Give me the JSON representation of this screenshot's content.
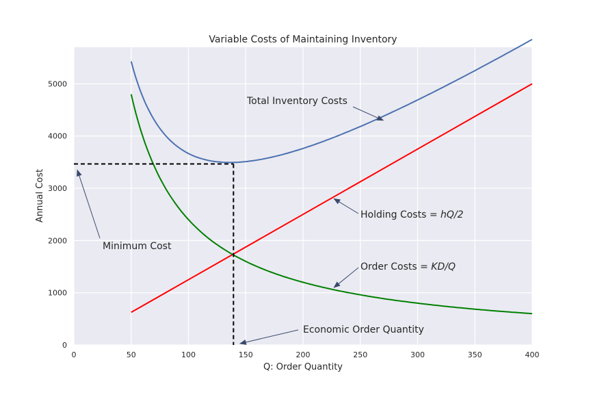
{
  "chart_data": {
    "type": "line",
    "title": "Variable Costs of Maintaining Inventory",
    "xlabel": "Q: Order Quantity",
    "ylabel": "Annual Cost",
    "xlim": [
      0,
      400
    ],
    "ylim": [
      0,
      5700
    ],
    "xticks": [
      0,
      50,
      100,
      150,
      200,
      250,
      300,
      350,
      400
    ],
    "yticks": [
      0,
      1000,
      2000,
      3000,
      4000,
      5000
    ],
    "grid": true,
    "series": [
      {
        "label": "Total Inventory Costs",
        "color": "#4c72b0",
        "x": [
          50,
          60,
          70,
          80,
          90,
          100,
          110,
          120,
          130,
          139.3,
          150,
          175,
          200,
          225,
          250,
          275,
          300,
          325,
          350,
          375,
          400
        ],
        "values": [
          5420,
          4917,
          4514,
          4262,
          4031,
          3845,
          3695,
          3586,
          3511,
          3466,
          3470,
          3564,
          3700,
          3874,
          4070,
          4294,
          4528,
          4773,
          5025,
          5286,
          5600
        ]
      },
      {
        "label": "Holding Costs",
        "color": "#ff0000",
        "x": [
          50,
          400
        ],
        "values": [
          625,
          5000
        ]
      },
      {
        "label": "Order Costs",
        "color": "#008000",
        "x": [
          50,
          60,
          70,
          80,
          90,
          100,
          120,
          139.3,
          160,
          180,
          200,
          250,
          300,
          350,
          400
        ],
        "values": [
          4800,
          4000,
          3429,
          3000,
          2667,
          2400,
          2000,
          1723,
          1500,
          1333,
          1200,
          960,
          800,
          686,
          600
        ]
      }
    ],
    "eoq": {
      "x": 139.3,
      "y": 3466,
      "order_cost": 1723
    },
    "annotations": {
      "total": "Total Inventory Costs",
      "holding_prefix": "Holding Costs = ",
      "holding_formula": "hQ/2",
      "order_prefix": "Order Costs = ",
      "order_formula": "KD/Q",
      "minimum": "Minimum Cost",
      "eoq": "Economic Order Quantity"
    },
    "colors": {
      "plot_background": "#eaeaf2",
      "grid": "#ffffff",
      "dashed": "#000000",
      "arrow": "#3a4a6b"
    }
  }
}
